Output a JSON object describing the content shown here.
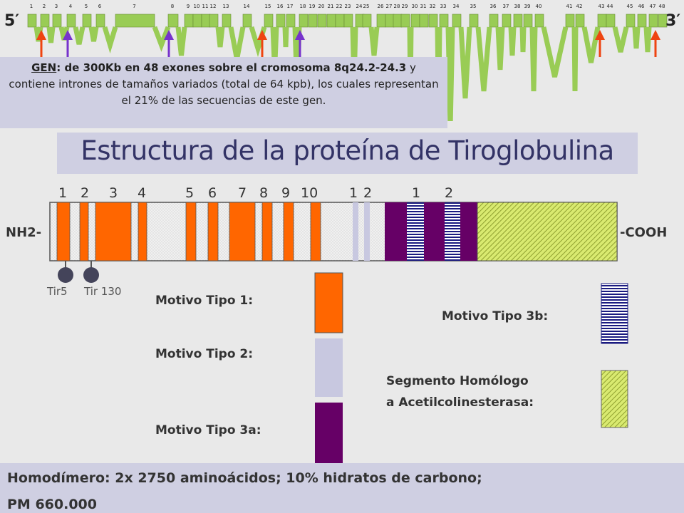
{
  "gene_map": {
    "five_prime": "5′",
    "three_prime": "3′",
    "exon_labels": [
      "1",
      "2",
      "3",
      "4",
      "5",
      "6",
      "7",
      "8",
      "9",
      "10",
      "11",
      "12",
      "13",
      "14",
      "15",
      "16",
      "17",
      "18",
      "19",
      "20",
      "21",
      "22",
      "23",
      "24",
      "25",
      "26",
      "27",
      "28",
      "29",
      "30",
      "31",
      "32",
      "33",
      "34",
      "35",
      "36",
      "37",
      "38",
      "39",
      "40",
      "41",
      "42",
      "43",
      "44",
      "45",
      "46",
      "47",
      "48"
    ]
  },
  "gene_info": {
    "gen_label": "GEN",
    "text_bold": ": de 300Kb en 48 exones sobre el cromosoma 8q24.2-24.3",
    "text_rest": " y contiene intrones de tamaños variados (total de  64 kpb), los cuales representan el 21% de las secuencias de este gen."
  },
  "title": "Estructura de la proteína de Tiroglobulina",
  "protein": {
    "nh2": "NH2-",
    "cooh": "-COOH",
    "type1_numbers": [
      "1",
      "2",
      "3",
      "4",
      "5",
      "6",
      "7",
      "8",
      "9",
      "10"
    ],
    "type2_numbers": [
      "1",
      "2"
    ],
    "type3b_numbers": [
      "1",
      "2"
    ],
    "tir5": "Tir5",
    "tir130": "Tir 130"
  },
  "legend": {
    "type1": "Motivo Tipo 1:",
    "type2": "Motivo Tipo 2:",
    "type3a": "Motivo Tipo 3a:",
    "type3b": "Motivo Tipo 3b:",
    "ache_line1": "Segmento Homólogo",
    "ache_line2": "a Acetilcolinesterasa:"
  },
  "colors": {
    "type1": "#ff6600",
    "type2": "#c8c8e0",
    "type3a": "#660066",
    "type3b": "#1a1a80",
    "ache": "#d9ea70",
    "exon": "#99cc55",
    "arrow_red": "#ee4411",
    "arrow_purple": "#7733cc"
  },
  "footer": {
    "line1": "Homodímero: 2x 2750 aminoácidos; 10% hidratos de carbono;",
    "line2": "PM 660.000"
  }
}
